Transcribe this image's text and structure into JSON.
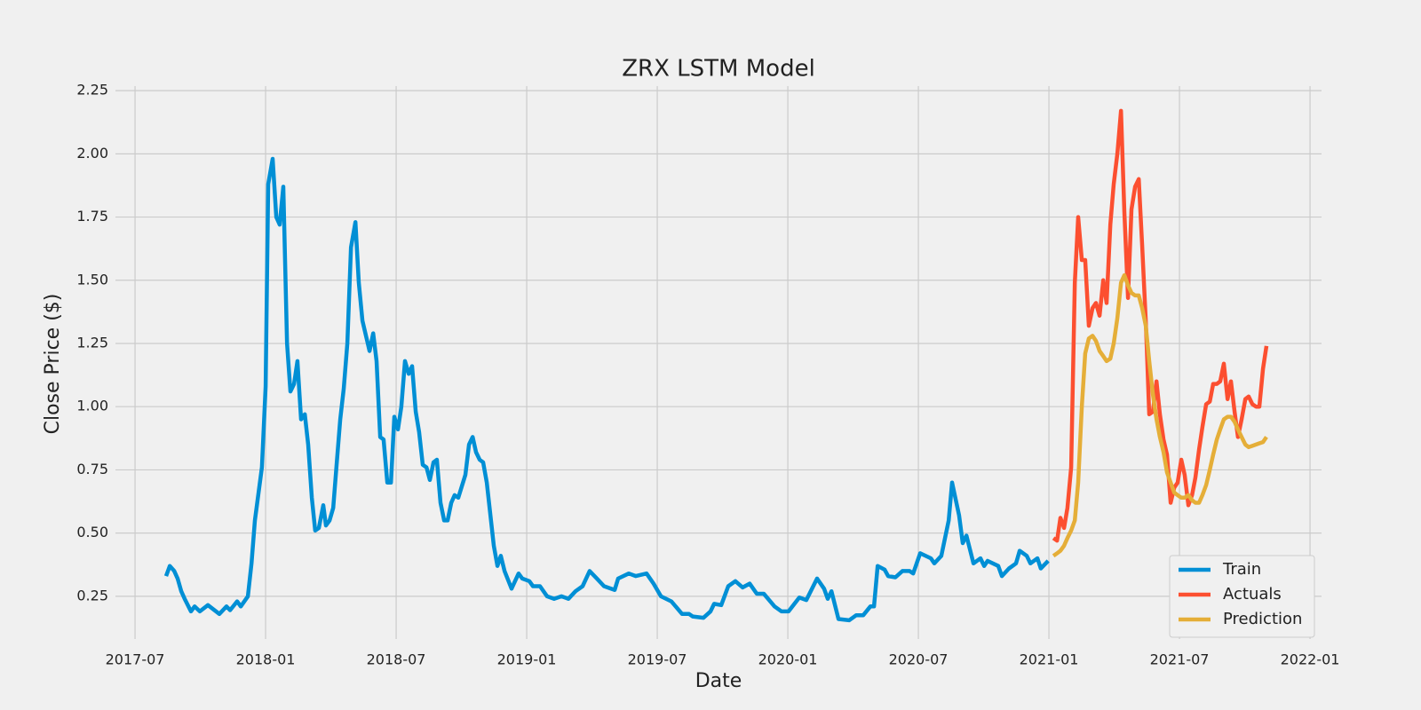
{
  "chart_data": {
    "type": "line",
    "title": "ZRX LSTM Model",
    "x_label": "Date",
    "y_label": "Close Price ($)",
    "xlim": [
      2017.425,
      2022.044
    ],
    "ylim": [
      0.081,
      2.268
    ],
    "xticks": [
      {
        "value": 2017.5,
        "label": "2017-07"
      },
      {
        "value": 2018.0,
        "label": "2018-01"
      },
      {
        "value": 2018.5,
        "label": "2018-07"
      },
      {
        "value": 2019.0,
        "label": "2019-01"
      },
      {
        "value": 2019.5,
        "label": "2019-07"
      },
      {
        "value": 2020.0,
        "label": "2020-01"
      },
      {
        "value": 2020.5,
        "label": "2020-07"
      },
      {
        "value": 2021.0,
        "label": "2021-01"
      },
      {
        "value": 2021.5,
        "label": "2021-07"
      },
      {
        "value": 2022.0,
        "label": "2022-01"
      }
    ],
    "yticks": [
      0.25,
      {
        "value": 0.5,
        "label": "0.50"
      },
      0.75,
      {
        "value": 1.0,
        "label": "1.00"
      },
      1.25,
      {
        "value": 1.5,
        "label": "1.50"
      },
      1.75,
      {
        "value": 2.0,
        "label": "2.00"
      },
      2.25
    ],
    "grid": true,
    "legend": "lower right",
    "series": [
      {
        "name": "Train",
        "color": "#008fd5",
        "x": [
          2017.619,
          2017.633,
          2017.65,
          2017.663,
          2017.677,
          2017.69,
          2017.714,
          2017.728,
          2017.748,
          2017.779,
          2017.823,
          2017.85,
          2017.864,
          2017.891,
          2017.905,
          2017.932,
          2017.946,
          2017.959,
          2017.986,
          2018.0,
          2018.01,
          2018.027,
          2018.041,
          2018.054,
          2018.068,
          2018.082,
          2018.095,
          2018.109,
          2018.122,
          2018.136,
          2018.15,
          2018.163,
          2018.177,
          2018.19,
          2018.204,
          2018.221,
          2018.231,
          2018.245,
          2018.259,
          2018.272,
          2018.286,
          2018.299,
          2018.313,
          2018.327,
          2018.344,
          2018.357,
          2018.371,
          2018.398,
          2018.412,
          2018.425,
          2018.439,
          2018.452,
          2018.466,
          2018.48,
          2018.493,
          2018.507,
          2018.52,
          2018.534,
          2018.548,
          2018.561,
          2018.575,
          2018.588,
          2018.602,
          2018.616,
          2018.629,
          2018.643,
          2018.656,
          2018.67,
          2018.684,
          2018.697,
          2018.711,
          2018.724,
          2018.738,
          2018.765,
          2018.779,
          2018.793,
          2018.806,
          2018.82,
          2018.833,
          2018.847,
          2018.874,
          2018.888,
          2018.901,
          2018.915,
          2018.942,
          2018.969,
          2018.983,
          2019.01,
          2019.024,
          2019.051,
          2019.078,
          2019.105,
          2019.133,
          2019.16,
          2019.187,
          2019.214,
          2019.241,
          2019.269,
          2019.296,
          2019.337,
          2019.35,
          2019.391,
          2019.418,
          2019.459,
          2019.486,
          2019.514,
          2019.554,
          2019.595,
          2019.622,
          2019.636,
          2019.677,
          2019.704,
          2019.718,
          2019.745,
          2019.772,
          2019.799,
          2019.827,
          2019.854,
          2019.881,
          2019.908,
          2019.949,
          2019.976,
          2020.003,
          2020.044,
          2020.071,
          2020.112,
          2020.139,
          2020.153,
          2020.167,
          2020.194,
          2020.235,
          2020.262,
          2020.289,
          2020.316,
          2020.33,
          2020.344,
          2020.371,
          2020.384,
          2020.412,
          2020.439,
          2020.466,
          2020.48,
          2020.507,
          2020.548,
          2020.561,
          2020.588,
          2020.616,
          2020.629,
          2020.656,
          2020.67,
          2020.684,
          2020.711,
          2020.738,
          2020.752,
          2020.765,
          2020.806,
          2020.82,
          2020.847,
          2020.874,
          2020.888,
          2020.915,
          2020.929,
          2020.956,
          2020.969,
          2020.997
        ],
        "values": [
          0.33,
          0.37,
          0.35,
          0.32,
          0.27,
          0.24,
          0.19,
          0.21,
          0.19,
          0.215,
          0.18,
          0.21,
          0.195,
          0.23,
          0.21,
          0.25,
          0.38,
          0.55,
          0.76,
          1.08,
          1.88,
          1.98,
          1.75,
          1.72,
          1.87,
          1.25,
          1.06,
          1.09,
          1.18,
          0.95,
          0.97,
          0.85,
          0.64,
          0.51,
          0.52,
          0.61,
          0.53,
          0.55,
          0.6,
          0.77,
          0.95,
          1.07,
          1.25,
          1.63,
          1.73,
          1.49,
          1.34,
          1.22,
          1.29,
          1.18,
          0.88,
          0.87,
          0.7,
          0.7,
          0.96,
          0.91,
          1.0,
          1.18,
          1.13,
          1.16,
          0.98,
          0.9,
          0.77,
          0.76,
          0.71,
          0.78,
          0.79,
          0.62,
          0.55,
          0.55,
          0.62,
          0.65,
          0.64,
          0.73,
          0.85,
          0.88,
          0.82,
          0.79,
          0.78,
          0.7,
          0.45,
          0.37,
          0.41,
          0.35,
          0.28,
          0.34,
          0.32,
          0.31,
          0.29,
          0.29,
          0.25,
          0.24,
          0.25,
          0.24,
          0.27,
          0.29,
          0.35,
          0.32,
          0.29,
          0.275,
          0.32,
          0.34,
          0.33,
          0.34,
          0.3,
          0.25,
          0.23,
          0.18,
          0.18,
          0.17,
          0.165,
          0.19,
          0.22,
          0.215,
          0.29,
          0.31,
          0.285,
          0.3,
          0.26,
          0.26,
          0.21,
          0.19,
          0.19,
          0.245,
          0.235,
          0.32,
          0.28,
          0.24,
          0.27,
          0.16,
          0.155,
          0.175,
          0.175,
          0.21,
          0.21,
          0.37,
          0.355,
          0.33,
          0.325,
          0.35,
          0.35,
          0.34,
          0.42,
          0.4,
          0.38,
          0.41,
          0.55,
          0.7,
          0.57,
          0.46,
          0.49,
          0.38,
          0.4,
          0.37,
          0.39,
          0.37,
          0.33,
          0.36,
          0.38,
          0.43,
          0.41,
          0.38,
          0.4,
          0.36,
          0.39
        ]
      },
      {
        "name": "Actuals",
        "color": "#fc4f30",
        "x": [
          2021.017,
          2021.031,
          2021.044,
          2021.058,
          2021.071,
          2021.085,
          2021.099,
          2021.112,
          2021.126,
          2021.139,
          2021.153,
          2021.167,
          2021.18,
          2021.194,
          2021.208,
          2021.221,
          2021.235,
          2021.248,
          2021.262,
          2021.276,
          2021.289,
          2021.303,
          2021.316,
          2021.33,
          2021.344,
          2021.357,
          2021.371,
          2021.384,
          2021.398,
          2021.412,
          2021.425,
          2021.439,
          2021.452,
          2021.466,
          2021.48,
          2021.493,
          2021.507,
          2021.52,
          2021.534,
          2021.548,
          2021.561,
          2021.575,
          2021.588,
          2021.602,
          2021.616,
          2021.629,
          2021.643,
          2021.656,
          2021.67,
          2021.684,
          2021.697,
          2021.711,
          2021.724,
          2021.738,
          2021.752,
          2021.765,
          2021.779,
          2021.793,
          2021.806,
          2021.82,
          2021.833
        ],
        "values": [
          0.48,
          0.47,
          0.56,
          0.52,
          0.6,
          0.76,
          1.49,
          1.75,
          1.58,
          1.58,
          1.32,
          1.39,
          1.41,
          1.36,
          1.5,
          1.41,
          1.72,
          1.88,
          2.0,
          2.17,
          1.77,
          1.43,
          1.78,
          1.87,
          1.9,
          1.64,
          1.34,
          0.97,
          0.98,
          1.1,
          0.97,
          0.87,
          0.81,
          0.62,
          0.68,
          0.7,
          0.79,
          0.73,
          0.61,
          0.65,
          0.72,
          0.83,
          0.92,
          1.01,
          1.02,
          1.09,
          1.09,
          1.1,
          1.17,
          1.03,
          1.1,
          0.98,
          0.88,
          0.95,
          1.03,
          1.04,
          1.01,
          1.0,
          1.0,
          1.15,
          1.24
        ]
      },
      {
        "name": "Prediction",
        "color": "#e5ae38",
        "x": [
          2021.017,
          2021.031,
          2021.044,
          2021.058,
          2021.071,
          2021.085,
          2021.099,
          2021.112,
          2021.126,
          2021.139,
          2021.153,
          2021.167,
          2021.18,
          2021.194,
          2021.208,
          2021.221,
          2021.235,
          2021.248,
          2021.262,
          2021.276,
          2021.289,
          2021.303,
          2021.316,
          2021.33,
          2021.344,
          2021.357,
          2021.371,
          2021.384,
          2021.398,
          2021.412,
          2021.425,
          2021.439,
          2021.452,
          2021.466,
          2021.48,
          2021.493,
          2021.507,
          2021.52,
          2021.534,
          2021.548,
          2021.561,
          2021.575,
          2021.588,
          2021.602,
          2021.616,
          2021.629,
          2021.643,
          2021.656,
          2021.67,
          2021.684,
          2021.697,
          2021.711,
          2021.724,
          2021.738,
          2021.752,
          2021.765,
          2021.779,
          2021.793,
          2021.806,
          2021.82,
          2021.833
        ],
        "values": [
          0.41,
          0.42,
          0.43,
          0.45,
          0.48,
          0.51,
          0.55,
          0.7,
          1.0,
          1.21,
          1.27,
          1.28,
          1.26,
          1.22,
          1.2,
          1.18,
          1.19,
          1.25,
          1.35,
          1.49,
          1.52,
          1.48,
          1.45,
          1.44,
          1.44,
          1.39,
          1.32,
          1.18,
          1.05,
          0.95,
          0.88,
          0.82,
          0.74,
          0.7,
          0.66,
          0.65,
          0.64,
          0.64,
          0.65,
          0.63,
          0.62,
          0.62,
          0.65,
          0.69,
          0.75,
          0.81,
          0.87,
          0.91,
          0.95,
          0.96,
          0.96,
          0.94,
          0.91,
          0.88,
          0.85,
          0.84,
          0.845,
          0.85,
          0.855,
          0.86,
          0.88
        ]
      }
    ]
  }
}
